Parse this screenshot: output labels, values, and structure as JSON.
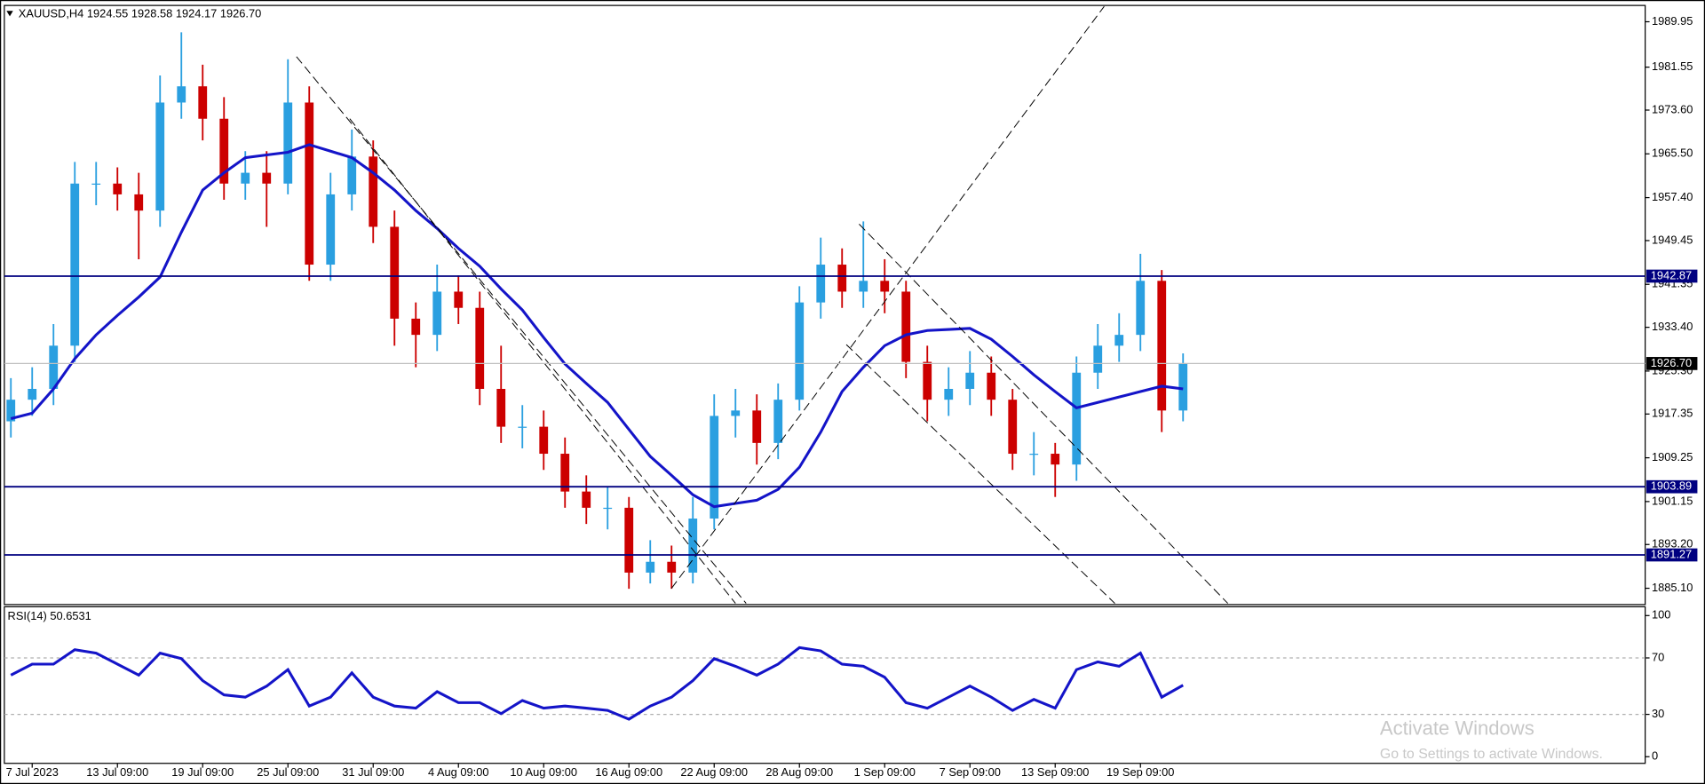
{
  "chart_data": [
    {
      "type": "candlestick",
      "title": "XAUUSD,H4  1924.55 1928.58 1924.17 1926.70",
      "categories": [
        null,
        "7 Jul 2023",
        null,
        null,
        null,
        "13 Jul 09:00",
        null,
        null,
        null,
        "19 Jul 09:00",
        null,
        null,
        null,
        "25 Jul 09:00",
        null,
        null,
        null,
        "31 Jul 09:00",
        null,
        null,
        null,
        "4 Aug 09:00",
        null,
        null,
        null,
        "10 Aug 09:00",
        null,
        null,
        null,
        "16 Aug 09:00",
        null,
        null,
        null,
        "22 Aug 09:00",
        null,
        null,
        null,
        "28 Aug 09:00",
        null,
        null,
        null,
        "1 Sep 09:00",
        null,
        null,
        null,
        "7 Sep 09:00",
        null,
        null,
        null,
        "13 Sep 09:00",
        null,
        null,
        null,
        "19 Sep 09:00",
        null,
        null
      ],
      "open": [
        1916,
        1920,
        1922,
        1930,
        1960,
        1960,
        1958,
        1955,
        1975,
        1978,
        1972,
        1960,
        1962,
        1960,
        1975,
        1945,
        1958,
        1965,
        1952,
        1935,
        1932,
        1940,
        1937,
        1922,
        1915,
        1915,
        1910,
        1903,
        1900,
        1900,
        1888,
        1890,
        1888,
        1898,
        1917,
        1918,
        1912,
        1920,
        1938,
        1945,
        1940,
        1942,
        1940,
        1927,
        1920,
        1922,
        1925,
        1920,
        1910,
        1910,
        1908,
        1925,
        1930,
        1932,
        1942,
        1918
      ],
      "high": [
        1924,
        1926,
        1934,
        1964,
        1964,
        1963,
        1962,
        1980,
        1988,
        1982,
        1976,
        1966,
        1966,
        1983,
        1978,
        1962,
        1970,
        1968,
        1955,
        1938,
        1945,
        1943,
        1940,
        1930,
        1919,
        1918,
        1913,
        1906,
        1904,
        1902,
        1894,
        1893,
        1902,
        1921,
        1922,
        1921,
        1923,
        1941,
        1950,
        1948,
        1953,
        1946,
        1942,
        1930,
        1926,
        1929,
        1928,
        1922,
        1914,
        1912,
        1928,
        1934,
        1936,
        1947,
        1944,
        1928.58
      ],
      "low": [
        1913,
        1917,
        1919,
        1927,
        1956,
        1955,
        1946,
        1952,
        1972,
        1968,
        1957,
        1957,
        1952,
        1958,
        1942,
        1942,
        1955,
        1949,
        1930,
        1926,
        1929,
        1934,
        1919,
        1912,
        1911,
        1907,
        1900,
        1897,
        1896,
        1885,
        1886,
        1885,
        1886,
        1896,
        1913,
        1908,
        1909,
        1918,
        1935,
        1937,
        1937,
        1936,
        1924,
        1916,
        1917,
        1919,
        1917,
        1907,
        1906,
        1902,
        1905,
        1922,
        1927,
        1929,
        1914,
        1916
      ],
      "close": [
        1920,
        1922,
        1930,
        1960,
        1960,
        1958,
        1955,
        1975,
        1978,
        1972,
        1960,
        1962,
        1960,
        1975,
        1945,
        1958,
        1965,
        1952,
        1935,
        1932,
        1940,
        1937,
        1922,
        1915,
        1915,
        1910,
        1903,
        1900,
        1900,
        1888,
        1890,
        1888,
        1898,
        1917,
        1918,
        1912,
        1920,
        1938,
        1945,
        1940,
        1942,
        1940,
        1927,
        1920,
        1922,
        1925,
        1920,
        1910,
        1910,
        1908,
        1925,
        1930,
        1932,
        1942,
        1918,
        1926.7
      ],
      "up_color": "#2a9fe0",
      "down_color": "#cc0000",
      "series": [
        {
          "color": "#1414c8",
          "values": [
            1916.5,
            1917.5,
            1922,
            1927.6,
            1932,
            1935.6,
            1939,
            1942.7,
            1951,
            1958.8,
            1962,
            1964.8,
            1965.3,
            1965.8,
            1967.2,
            1966,
            1964.8,
            1962,
            1958.8,
            1955,
            1951.7,
            1948,
            1944.7,
            1940.5,
            1936.6,
            1931.5,
            1926.6,
            1923,
            1919.5,
            1914.5,
            1909.5,
            1906,
            1902.4,
            1900.2,
            1900.8,
            1901.4,
            1903.4,
            1907.5,
            1914,
            1921.5,
            1926,
            1930,
            1932,
            1932.8,
            1933,
            1933.2,
            1931.2,
            1928,
            1924.6,
            1921.5,
            1918.5,
            1919.5,
            1920.5,
            1921.5,
            1922.5,
            1922
          ]
        }
      ],
      "levels": [
        1942.87,
        1903.89,
        1891.27
      ],
      "level_color": "#000080",
      "current_price": {
        "value": 1926.7,
        "label": "1926.70"
      },
      "trendlines": [
        [
          [
            13.4,
            1983.5
          ],
          [
            34.5,
            1882.3
          ]
        ],
        [
          [
            15.9,
            1972
          ],
          [
            34,
            1882.3
          ]
        ],
        [
          [
            31,
            1885.1
          ],
          [
            51.3,
            1992.8
          ]
        ],
        [
          [
            39.8,
            1952.5
          ],
          [
            57.1,
            1882.3
          ]
        ],
        [
          [
            39.2,
            1930.2
          ],
          [
            51.8,
            1882.3
          ]
        ]
      ],
      "ylim": [
        1882.08,
        1992.97
      ],
      "yticks": [
        1989.95,
        1981.55,
        {
          "value": 1973.6,
          "label": "1973.60"
        },
        {
          "value": 1965.5,
          "label": "1965.50"
        },
        {
          "value": 1957.4,
          "label": "1957.40"
        },
        1949.45,
        1941.35,
        {
          "value": 1933.4,
          "label": "1933.40"
        },
        {
          "value": 1925.3,
          "label": "1925.30"
        },
        1917.35,
        1909.25,
        1901.15,
        {
          "value": 1893.2,
          "label": "1893.20"
        },
        {
          "value": 1885.1,
          "label": "1885.10"
        }
      ]
    },
    {
      "type": "line",
      "title": "RSI(14) 50.6531",
      "values": [
        57.8,
        65.6,
        65.6,
        75.8,
        73.4,
        65.6,
        57.8,
        73.4,
        69.5,
        53.9,
        43.8,
        42.2,
        50,
        61.7,
        35.9,
        42.2,
        59.4,
        42.2,
        35.9,
        34.4,
        46.1,
        38.3,
        38.3,
        30.5,
        39.8,
        34.4,
        35.9,
        34.4,
        32.8,
        26.6,
        35.9,
        42.2,
        53.9,
        69.5,
        64.1,
        57.8,
        65.6,
        77.3,
        75,
        65.6,
        64.1,
        56.3,
        38.3,
        34.4,
        42.2,
        50,
        42.2,
        32.8,
        40.6,
        34.4,
        61.7,
        67.2,
        64.1,
        73.4,
        42.2,
        50.65
      ],
      "color": "#1414c8",
      "levels": [
        70,
        30
      ],
      "ylim": [
        -4.7,
        106.25
      ],
      "yticks": [
        100,
        70,
        30,
        0
      ]
    }
  ],
  "watermark": {
    "title": "Activate Windows",
    "subtitle": "Go to Settings to activate Windows."
  }
}
